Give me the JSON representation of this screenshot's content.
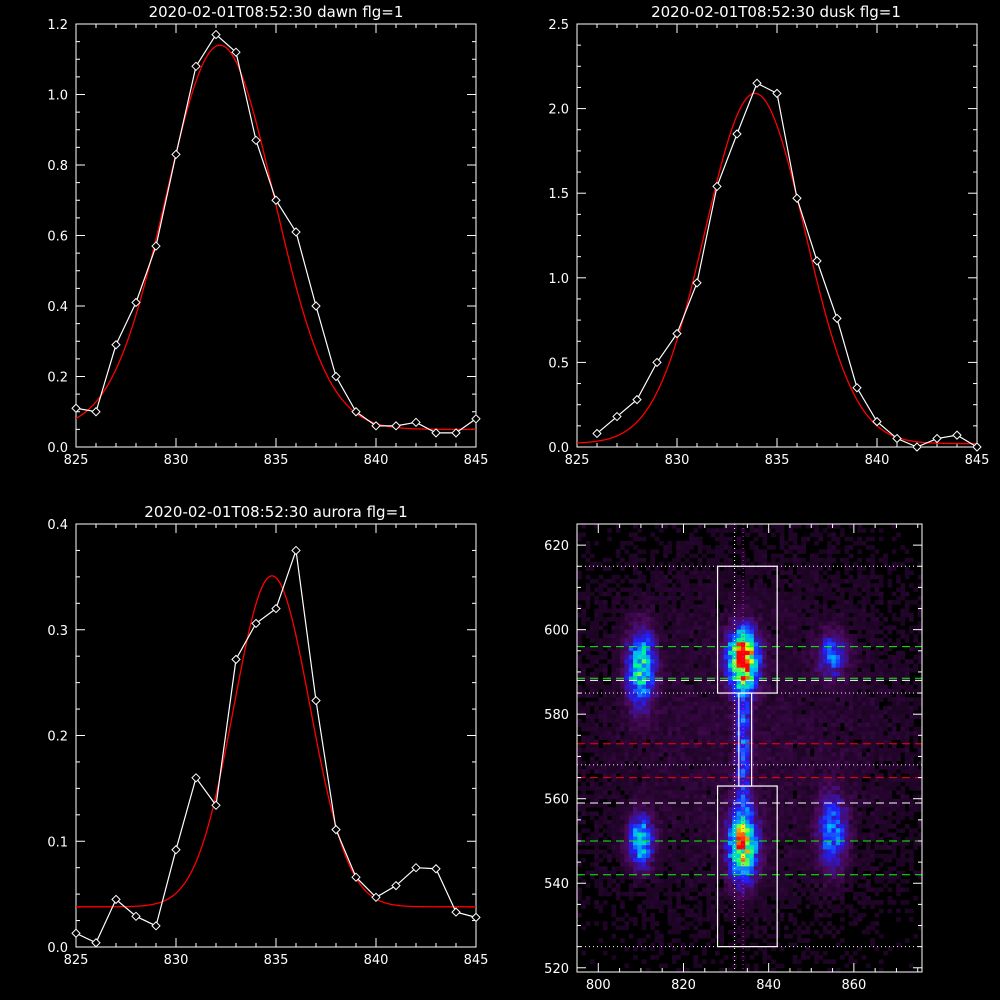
{
  "colors": {
    "background": "#000000",
    "axes": "#ffffff",
    "data_line": "#ffffff",
    "fit_line": "#ff0000",
    "green_guides": "#00ff00",
    "red_guides": "#ff0000",
    "magenta_guides": "#ff00ff"
  },
  "chart_data": [
    {
      "type": "line",
      "title": "2020-02-01T08:52:30 dawn flg=1",
      "xlim": [
        825,
        845
      ],
      "ylim": [
        0,
        1.2
      ],
      "xticks": [
        825,
        830,
        835,
        840,
        845
      ],
      "yticks": [
        0.0,
        0.2,
        0.4,
        0.6,
        0.8,
        1.0,
        1.2
      ],
      "ytick_labels": [
        "0.0",
        "0.2",
        "0.4",
        "0.6",
        "0.8",
        "1.0",
        "1.2"
      ],
      "series": [
        {
          "marker": "diamond",
          "x": [
            825,
            826,
            827,
            828,
            829,
            830,
            831,
            832,
            833,
            834,
            835,
            836,
            837,
            838,
            839,
            840,
            841,
            842,
            843,
            844,
            845
          ],
          "y": [
            0.11,
            0.1,
            0.29,
            0.41,
            0.57,
            0.83,
            1.08,
            1.17,
            1.12,
            0.87,
            0.7,
            0.61,
            0.4,
            0.2,
            0.1,
            0.06,
            0.06,
            0.07,
            0.04,
            0.04,
            0.08
          ]
        },
        {
          "fit": "gaussian",
          "center": 832.2,
          "sigma": 2.7,
          "amplitude": 1.09,
          "baseline": 0.05
        }
      ]
    },
    {
      "type": "line",
      "title": "2020-02-01T08:52:30 dusk flg=1",
      "xlim": [
        825,
        845
      ],
      "ylim": [
        0,
        2.5
      ],
      "xticks": [
        825,
        830,
        835,
        840,
        845
      ],
      "yticks": [
        0.0,
        0.5,
        1.0,
        1.5,
        2.0,
        2.5
      ],
      "ytick_labels": [
        "0.0",
        "0.5",
        "1.0",
        "1.5",
        "2.0",
        "2.5"
      ],
      "series": [
        {
          "marker": "diamond",
          "x": [
            826,
            827,
            828,
            829,
            830,
            831,
            832,
            833,
            834,
            835,
            836,
            837,
            838,
            839,
            840,
            841,
            842,
            843,
            844,
            845
          ],
          "y": [
            0.08,
            0.18,
            0.28,
            0.5,
            0.67,
            0.97,
            1.54,
            1.85,
            2.15,
            2.09,
            1.47,
            1.1,
            0.76,
            0.35,
            0.15,
            0.05,
            0.0,
            0.05,
            0.07,
            0.0
          ]
        },
        {
          "fit": "gaussian",
          "center": 833.9,
          "sigma": 2.5,
          "amplitude": 2.07,
          "baseline": 0.02
        }
      ]
    },
    {
      "type": "line",
      "title": "2020-02-01T08:52:30 aurora flg=1",
      "xlim": [
        825,
        845
      ],
      "ylim": [
        0,
        0.4
      ],
      "xticks": [
        825,
        830,
        835,
        840,
        845
      ],
      "yticks": [
        0.0,
        0.1,
        0.2,
        0.3,
        0.4
      ],
      "ytick_labels": [
        "0.0",
        "0.1",
        "0.2",
        "0.3",
        "0.4"
      ],
      "series": [
        {
          "marker": "diamond",
          "x": [
            825,
            826,
            827,
            828,
            829,
            830,
            831,
            832,
            833,
            834,
            835,
            836,
            837,
            838,
            839,
            840,
            841,
            842,
            843,
            844,
            845
          ],
          "y": [
            0.013,
            0.004,
            0.045,
            0.029,
            0.02,
            0.092,
            0.16,
            0.134,
            0.272,
            0.306,
            0.32,
            0.375,
            0.233,
            0.111,
            0.066,
            0.047,
            0.058,
            0.075,
            0.074,
            0.033,
            0.028
          ]
        },
        {
          "fit": "gaussian",
          "center": 834.8,
          "sigma": 1.9,
          "amplitude": 0.313,
          "baseline": 0.038
        }
      ]
    },
    {
      "type": "heatmap",
      "xlim": [
        795,
        876
      ],
      "ylim": [
        519,
        625
      ],
      "xticks": [
        800,
        820,
        840,
        860
      ],
      "yticks": [
        520,
        540,
        560,
        580,
        600,
        620
      ],
      "colormap": [
        "#000000",
        "#4b0a5c",
        "#2020ff",
        "#00b4ff",
        "#00ff80",
        "#ffff00",
        "#ff0000"
      ],
      "blobs": [
        {
          "x": 810,
          "y": 591,
          "sx": 2.2,
          "sy": 6.0,
          "amp": 0.55
        },
        {
          "x": 810,
          "y": 550,
          "sx": 2.0,
          "sy": 4.0,
          "amp": 0.5
        },
        {
          "x": 834,
          "y": 593,
          "sx": 2.3,
          "sy": 4.5,
          "amp": 1.0
        },
        {
          "x": 834,
          "y": 549,
          "sx": 2.3,
          "sy": 5.5,
          "amp": 0.75
        },
        {
          "x": 834,
          "y": 573,
          "sx": 1.2,
          "sy": 12.0,
          "amp": 0.3
        },
        {
          "x": 855,
          "y": 594,
          "sx": 2.3,
          "sy": 3.5,
          "amp": 0.32
        },
        {
          "x": 855,
          "y": 552,
          "sx": 2.3,
          "sy": 6.0,
          "amp": 0.36
        },
        {
          "x": 835,
          "y": 575,
          "sx": 40.0,
          "sy": 40.0,
          "amp": 0.08
        }
      ],
      "boxes": [
        {
          "x0": 828,
          "x1": 842,
          "y0": 585,
          "y1": 615
        },
        {
          "x0": 828,
          "x1": 842,
          "y0": 525,
          "y1": 563
        },
        {
          "x0": 833,
          "x1": 836,
          "y0": 563,
          "y1": 585
        }
      ],
      "h_lines": [
        {
          "y": 615,
          "color": "white",
          "style": "dotted"
        },
        {
          "y": 596,
          "color": "green",
          "style": "dashed"
        },
        {
          "y": 588.5,
          "color": "green",
          "style": "dashed"
        },
        {
          "y": 588,
          "color": "white",
          "style": "dashed"
        },
        {
          "y": 585,
          "color": "white",
          "style": "dotted"
        },
        {
          "y": 573,
          "color": "red",
          "style": "dashed"
        },
        {
          "y": 565,
          "color": "red",
          "style": "dashed"
        },
        {
          "y": 568,
          "color": "white",
          "style": "dotted"
        },
        {
          "y": 559,
          "color": "white",
          "style": "dashed"
        },
        {
          "y": 550,
          "color": "green",
          "style": "dashed"
        },
        {
          "y": 542,
          "color": "green",
          "style": "dashed"
        },
        {
          "y": 525,
          "color": "white",
          "style": "dotted"
        }
      ],
      "v_lines": [
        {
          "x": 832,
          "color": "white",
          "style": "dotted"
        },
        {
          "x": 834,
          "color": "magenta",
          "style": "dotted"
        }
      ]
    }
  ]
}
